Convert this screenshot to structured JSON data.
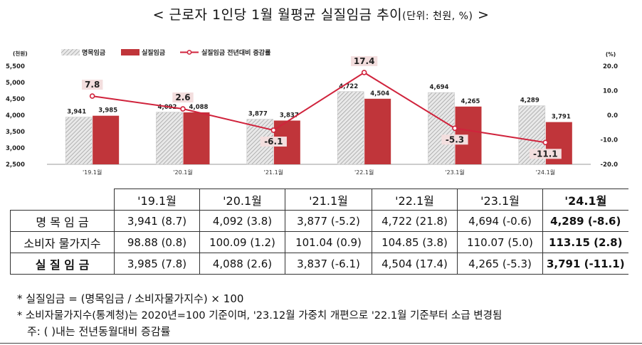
{
  "title": {
    "main": "< 근로자 1인당 1월 월평균 실질임금 추이",
    "unit": "(단위: 천원, %)",
    "end": " >"
  },
  "chart_data": {
    "type": "bar",
    "categories": [
      "'19.1월",
      "'20.1월",
      "'21.1월",
      "'22.1월",
      "'23.1월",
      "'24.1월"
    ],
    "series": [
      {
        "name": "명목임금",
        "kind": "bar",
        "pattern": "hatched",
        "values": [
          3941,
          4092,
          3877,
          4722,
          4694,
          4289
        ]
      },
      {
        "name": "실질임금",
        "kind": "bar",
        "color": "#c0353a",
        "values": [
          3985,
          4088,
          3837,
          4504,
          4265,
          3791
        ]
      },
      {
        "name": "실질임금 전년대비 증감률",
        "kind": "line",
        "axis": "right",
        "color": "#d0233c",
        "values": [
          7.8,
          2.6,
          -6.1,
          17.4,
          -5.3,
          -11.1
        ]
      }
    ],
    "bar_labels_nominal": [
      "3,941",
      "4,092",
      "3,877",
      "4,722",
      "4,694",
      "4,289"
    ],
    "bar_labels_real": [
      "3,985",
      "4,088",
      "3,837",
      "4,504",
      "4,265",
      "3,791"
    ],
    "line_labels": [
      "7.8",
      "2.6",
      "-6.1",
      "17.4",
      "-5.3",
      "-11.1"
    ],
    "left_axis": {
      "unit_label": "(천원)",
      "ylim": [
        2500,
        5500
      ],
      "ticks": [
        2500,
        3000,
        3500,
        4000,
        4500,
        5000,
        5500
      ],
      "tick_labels": [
        "2,500",
        "3,000",
        "3,500",
        "4,000",
        "4,500",
        "5,000",
        "5,500"
      ]
    },
    "right_axis": {
      "unit_label": "(%)",
      "ylim": [
        -20,
        20
      ],
      "ticks": [
        -20,
        -10,
        0,
        10,
        20
      ],
      "tick_labels": [
        "-20.0",
        "-10.0",
        "0.0",
        "10.0",
        "20.0"
      ]
    },
    "legend_position": "top-left",
    "grid": false
  },
  "table": {
    "headers": [
      "'19.1월",
      "'20.1월",
      "'21.1월",
      "'22.1월",
      "'23.1월",
      "'24.1월"
    ],
    "rows": [
      {
        "label": "명 목 임 금",
        "label_bold": false,
        "cells": [
          "3,941  (8.7)",
          "4,092  (3.8)",
          "3,877  (-5.2)",
          "4,722  (21.8)",
          "4,694  (-0.6)",
          "4,289  (-8.6)"
        ]
      },
      {
        "label": "소비자 물가지수",
        "label_bold": false,
        "cells": [
          "98.88  (0.8)",
          "100.09  (1.2)",
          "101.04  (0.9)",
          "104.85  (3.8)",
          "110.07  (5.0)",
          "113.15  (2.8)"
        ]
      },
      {
        "label": "실 질 임 금",
        "label_bold": true,
        "cells": [
          "3,985  (7.8)",
          "4,088  (2.6)",
          "3,837  (-6.1)",
          "4,504  (17.4)",
          "4,265  (-5.3)",
          "3,791  (-11.1)"
        ]
      }
    ]
  },
  "notes": [
    "* 실질임금 = (명목임금 / 소비자물가지수) × 100",
    "* 소비자물가지수(통계청)는 2020년=100 기준이며, '23.12월 가중치 개편으로 '22.1월 기준부터 소급 변경됨",
    "주: (   )내는 전년동월대비 증감률"
  ]
}
